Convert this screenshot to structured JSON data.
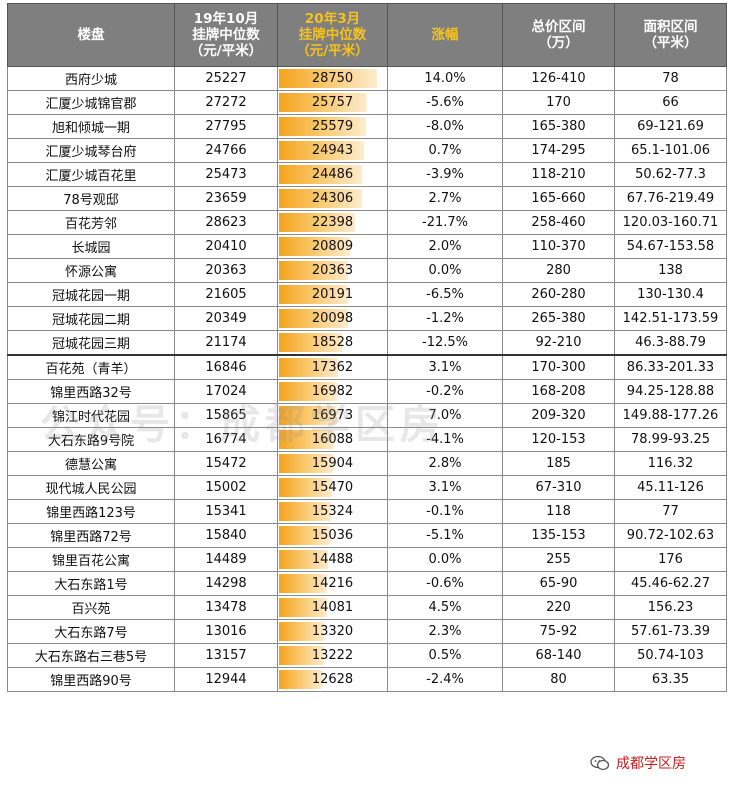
{
  "headers": {
    "c1": "楼盘",
    "c2": [
      "19年10月",
      "挂牌中位数",
      "（元/平米）"
    ],
    "c3": [
      "20年3月",
      "挂牌中位数",
      "（元/平米）"
    ],
    "c4": "涨幅",
    "c5": [
      "总价区间",
      "（万）"
    ],
    "c6": [
      "面积区间",
      "（平米）"
    ]
  },
  "bar_scale_max": 28750,
  "colors": {
    "header_bg": "#7f7f7f",
    "highlight_text": "#f7c21b",
    "bar": "#f5a31c",
    "footer": "#c81e1e"
  },
  "rows": [
    {
      "name": "西府少城",
      "oct": "25227",
      "mar": "28750",
      "mar_value": 28750,
      "change": "14.0%",
      "price": "126-410",
      "area": "78"
    },
    {
      "name": "汇厦少城锦官郡",
      "oct": "27272",
      "mar": "25757",
      "mar_value": 25757,
      "change": "-5.6%",
      "price": "170",
      "area": "66"
    },
    {
      "name": "旭和倾城一期",
      "oct": "27795",
      "mar": "25579",
      "mar_value": 25579,
      "change": "-8.0%",
      "price": "165-380",
      "area": "69-121.69"
    },
    {
      "name": "汇厦少城琴台府",
      "oct": "24766",
      "mar": "24943",
      "mar_value": 24943,
      "change": "0.7%",
      "price": "174-295",
      "area": "65.1-101.06"
    },
    {
      "name": "汇厦少城百花里",
      "oct": "25473",
      "mar": "24486",
      "mar_value": 24486,
      "change": "-3.9%",
      "price": "118-210",
      "area": "50.62-77.3"
    },
    {
      "name": "78号观邸",
      "oct": "23659",
      "mar": "24306",
      "mar_value": 24306,
      "change": "2.7%",
      "price": "165-660",
      "area": "67.76-219.49"
    },
    {
      "name": "百花芳邻",
      "oct": "28623",
      "mar": "22398",
      "mar_value": 22398,
      "change": "-21.7%",
      "price": "258-460",
      "area": "120.03-160.71"
    },
    {
      "name": "长城园",
      "oct": "20410",
      "mar": "20809",
      "mar_value": 20809,
      "change": "2.0%",
      "price": "110-370",
      "area": "54.67-153.58"
    },
    {
      "name": "怀源公寓",
      "oct": "20363",
      "mar": "20363",
      "mar_value": 20363,
      "change": "0.0%",
      "price": "280",
      "area": "138"
    },
    {
      "name": "冠城花园一期",
      "oct": "21605",
      "mar": "20191",
      "mar_value": 20191,
      "change": "-6.5%",
      "price": "260-280",
      "area": "130-130.4"
    },
    {
      "name": "冠城花园二期",
      "oct": "20349",
      "mar": "20098",
      "mar_value": 20098,
      "change": "-1.2%",
      "price": "265-380",
      "area": "142.51-173.59"
    },
    {
      "name": "冠城花园三期",
      "oct": "21174",
      "mar": "18528",
      "mar_value": 18528,
      "change": "-12.5%",
      "price": "92-210",
      "area": "46.3-88.79"
    },
    {
      "name": "百花苑（青羊）",
      "oct": "16846",
      "mar": "17362",
      "mar_value": 17362,
      "change": "3.1%",
      "price": "170-300",
      "area": "86.33-201.33"
    },
    {
      "name": "锦里西路32号",
      "oct": "17024",
      "mar": "16982",
      "mar_value": 16982,
      "change": "-0.2%",
      "price": "168-208",
      "area": "94.25-128.88"
    },
    {
      "name": "锦江时代花园",
      "oct": "15865",
      "mar": "16973",
      "mar_value": 16973,
      "change": "7.0%",
      "price": "209-320",
      "area": "149.88-177.26"
    },
    {
      "name": "大石东路9号院",
      "oct": "16774",
      "mar": "16088",
      "mar_value": 16088,
      "change": "-4.1%",
      "price": "120-153",
      "area": "78.99-93.25"
    },
    {
      "name": "德慧公寓",
      "oct": "15472",
      "mar": "15904",
      "mar_value": 15904,
      "change": "2.8%",
      "price": "185",
      "area": "116.32"
    },
    {
      "name": "现代城人民公园",
      "oct": "15002",
      "mar": "15470",
      "mar_value": 15470,
      "change": "3.1%",
      "price": "67-310",
      "area": "45.11-126"
    },
    {
      "name": "锦里西路123号",
      "oct": "15341",
      "mar": "15324",
      "mar_value": 15324,
      "change": "-0.1%",
      "price": "118",
      "area": "77"
    },
    {
      "name": "锦里西路72号",
      "oct": "15840",
      "mar": "15036",
      "mar_value": 15036,
      "change": "-5.1%",
      "price": "135-153",
      "area": "90.72-102.63"
    },
    {
      "name": "锦里百花公寓",
      "oct": "14489",
      "mar": "14488",
      "mar_value": 14488,
      "change": "0.0%",
      "price": "255",
      "area": "176"
    },
    {
      "name": "大石东路1号",
      "oct": "14298",
      "mar": "14216",
      "mar_value": 14216,
      "change": "-0.6%",
      "price": "65-90",
      "area": "45.46-62.27"
    },
    {
      "name": "百兴苑",
      "oct": "13478",
      "mar": "14081",
      "mar_value": 14081,
      "change": "4.5%",
      "price": "220",
      "area": "156.23"
    },
    {
      "name": "大石东路7号",
      "oct": "13016",
      "mar": "13320",
      "mar_value": 13320,
      "change": "2.3%",
      "price": "75-92",
      "area": "57.61-73.39"
    },
    {
      "name": "大石东路右三巷5号",
      "oct": "13157",
      "mar": "13222",
      "mar_value": 13222,
      "change": "0.5%",
      "price": "68-140",
      "area": "50.74-103"
    },
    {
      "name": "锦里西路90号",
      "oct": "12944",
      "mar": "12628",
      "mar_value": 12628,
      "change": "-2.4%",
      "price": "80",
      "area": "63.35"
    }
  ],
  "watermark": "公众号：成都学区房",
  "footer": {
    "text": "成都学区房",
    "icon": "wechat-icon"
  }
}
